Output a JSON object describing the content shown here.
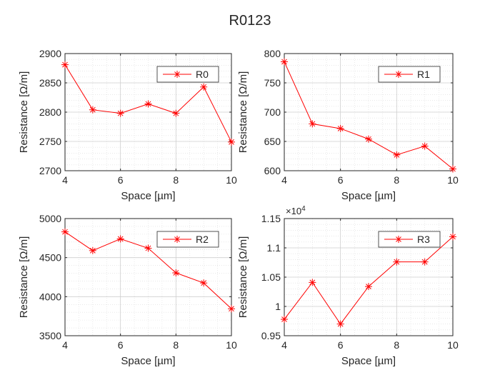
{
  "figure_title": "R0123",
  "chart_data": [
    {
      "type": "line",
      "name": "R0",
      "x": [
        4,
        5,
        6,
        7,
        8,
        9,
        10
      ],
      "series": [
        {
          "name": "R0",
          "values": [
            2881,
            2804,
            2798,
            2814,
            2798,
            2843,
            2749
          ]
        }
      ],
      "xlabel": "Space [µm]",
      "ylabel": "Resistance [Ω/m]",
      "xlim": [
        4,
        10
      ],
      "ylim": [
        2700,
        2900
      ],
      "xticks": [
        4,
        6,
        8,
        10
      ],
      "xtick_labels": [
        "4",
        "6",
        "8",
        "10"
      ],
      "yticks": [
        2700,
        2750,
        2800,
        2850,
        2900
      ],
      "ytick_labels": [
        "2700",
        "2750",
        "2800",
        "2850",
        "2900"
      ],
      "exponent_label": "",
      "grid": true,
      "minor_grid": true,
      "legend": "top-right",
      "color": "#ff0000",
      "marker": "asterisk"
    },
    {
      "type": "line",
      "name": "R1",
      "x": [
        4,
        5,
        6,
        7,
        8,
        9,
        10
      ],
      "series": [
        {
          "name": "R1",
          "values": [
            786,
            680,
            672,
            654,
            627,
            642,
            603
          ]
        }
      ],
      "xlabel": "Space [µm]",
      "ylabel": "Resistance [Ω/m]",
      "xlim": [
        4,
        10
      ],
      "ylim": [
        600,
        800
      ],
      "xticks": [
        4,
        6,
        8,
        10
      ],
      "xtick_labels": [
        "4",
        "6",
        "8",
        "10"
      ],
      "yticks": [
        600,
        650,
        700,
        750,
        800
      ],
      "ytick_labels": [
        "600",
        "650",
        "700",
        "750",
        "800"
      ],
      "exponent_label": "",
      "grid": true,
      "minor_grid": true,
      "legend": "top-right",
      "color": "#ff0000",
      "marker": "asterisk"
    },
    {
      "type": "line",
      "name": "R2",
      "x": [
        4,
        5,
        6,
        7,
        8,
        9,
        10
      ],
      "series": [
        {
          "name": "R2",
          "values": [
            4830,
            4590,
            4740,
            4620,
            4305,
            4175,
            3845
          ]
        }
      ],
      "xlabel": "Space [µm]",
      "ylabel": "Resistance [Ω/m]",
      "xlim": [
        4,
        10
      ],
      "ylim": [
        3500,
        5000
      ],
      "xticks": [
        4,
        6,
        8,
        10
      ],
      "xtick_labels": [
        "4",
        "6",
        "8",
        "10"
      ],
      "yticks": [
        3500,
        4000,
        4500,
        5000
      ],
      "ytick_labels": [
        "3500",
        "4000",
        "4500",
        "5000"
      ],
      "exponent_label": "",
      "grid": true,
      "minor_grid": true,
      "legend": "top-right",
      "color": "#ff0000",
      "marker": "asterisk"
    },
    {
      "type": "line",
      "name": "R3",
      "x": [
        4,
        5,
        6,
        7,
        8,
        9,
        10
      ],
      "series": [
        {
          "name": "R3",
          "values": [
            9780,
            10410,
            9700,
            10340,
            10760,
            10760,
            11190
          ]
        }
      ],
      "xlabel": "Space [µm]",
      "ylabel": "Resistance [Ω/m]",
      "xlim": [
        4,
        10
      ],
      "ylim": [
        9500,
        11500
      ],
      "xticks": [
        4,
        6,
        8,
        10
      ],
      "xtick_labels": [
        "4",
        "6",
        "8",
        "10"
      ],
      "yticks": [
        9500,
        10000,
        10500,
        11000,
        11500
      ],
      "ytick_labels": [
        "0.95",
        "1",
        "1.05",
        "1.1",
        "1.15"
      ],
      "exponent_label": "×10^4",
      "grid": true,
      "minor_grid": true,
      "legend": "top-right",
      "color": "#ff0000",
      "marker": "asterisk"
    }
  ]
}
